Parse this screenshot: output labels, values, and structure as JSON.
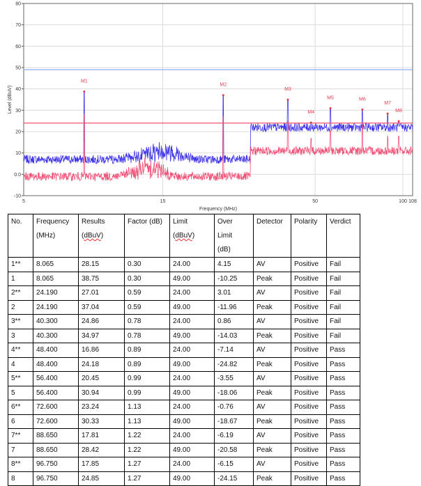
{
  "chart_data": {
    "type": "line",
    "xlabel": "Frequency (MHz)",
    "ylabel": "Level (dBuV)",
    "x_scale": "log",
    "xlim": [
      5,
      108
    ],
    "ylim": [
      -10,
      80
    ],
    "x_ticks": [
      "5",
      "15",
      "50",
      "100",
      "108"
    ],
    "x_tick_values": [
      5,
      15,
      50,
      100,
      108
    ],
    "y_ticks": [
      "80",
      "70",
      "60",
      "50",
      "40",
      "30",
      "20",
      "10",
      "0.0",
      "-10"
    ],
    "y_tick_values": [
      80,
      70,
      60,
      50,
      40,
      30,
      20,
      10,
      0,
      -10
    ],
    "grid": true,
    "limit_lines": [
      {
        "value": 49,
        "color": "#7fa3f5"
      },
      {
        "value": 24,
        "color": "#f0506e"
      }
    ],
    "traces": [
      {
        "detector": "Peak",
        "color": "#2a1ee6",
        "floor": [
          {
            "x": [
              5,
              30
            ],
            "y": 7
          },
          {
            "x": [
              30,
              108
            ],
            "y": 22
          }
        ],
        "hump": {
          "x": [
            10,
            20
          ],
          "y": 13
        }
      },
      {
        "detector": "AV",
        "color": "#f0406a",
        "floor": [
          {
            "x": [
              5,
              30
            ],
            "y": -1
          },
          {
            "x": [
              30,
              108
            ],
            "y": 11
          }
        ],
        "hump": {
          "x": [
            10,
            17
          ],
          "y": 5
        }
      }
    ],
    "markers": [
      {
        "label": "M1",
        "x": 8.065,
        "y": 38.75,
        "av": 28.15
      },
      {
        "label": "M2",
        "x": 24.19,
        "y": 37.04,
        "av": 27.01
      },
      {
        "label": "M3",
        "x": 40.3,
        "y": 34.97,
        "av": 24.86
      },
      {
        "label": "M4",
        "x": 48.4,
        "y": 24.18,
        "av": 16.86
      },
      {
        "label": "M5",
        "x": 56.4,
        "y": 30.94,
        "av": 20.45
      },
      {
        "label": "M6",
        "x": 72.6,
        "y": 30.33,
        "av": 23.24
      },
      {
        "label": "M7",
        "x": 88.65,
        "y": 28.42,
        "av": 17.81
      },
      {
        "label": "M8",
        "x": 96.75,
        "y": 24.85,
        "av": 17.85
      }
    ],
    "marker_color": "#e8384f"
  },
  "table": {
    "headers": [
      [
        "No."
      ],
      [
        "Frequency",
        "(MHz)"
      ],
      [
        "Results",
        "(dBuV)"
      ],
      [
        "Factor (dB)"
      ],
      [
        "Limit",
        "(dBuV)"
      ],
      [
        "Over",
        "Limit",
        "(dB)"
      ],
      [
        "Detector"
      ],
      [
        "Polarity"
      ],
      [
        "Verdict"
      ]
    ],
    "rows": [
      [
        "1**",
        "8.065",
        "28.15",
        "0.30",
        "24.00",
        "4.15",
        "AV",
        "Positive",
        "Fail"
      ],
      [
        "1",
        "8.065",
        "38.75",
        "0.30",
        "49.00",
        "-10.25",
        "Peak",
        "Positive",
        "Fail"
      ],
      [
        "2**",
        "24.190",
        "27.01",
        "0.59",
        "24.00",
        "3.01",
        "AV",
        "Positive",
        "Fail"
      ],
      [
        "2",
        "24.190",
        "37.04",
        "0.59",
        "49.00",
        "-11.96",
        "Peak",
        "Positive",
        "Fail"
      ],
      [
        "3**",
        "40.300",
        "24.86",
        "0.78",
        "24.00",
        "0.86",
        "AV",
        "Positive",
        "Fail"
      ],
      [
        "3",
        "40.300",
        "34.97",
        "0.78",
        "49.00",
        "-14.03",
        "Peak",
        "Positive",
        "Fail"
      ],
      [
        "4**",
        "48.400",
        "16.86",
        "0.89",
        "24.00",
        "-7.14",
        "AV",
        "Positive",
        "Pass"
      ],
      [
        "4",
        "48.400",
        "24.18",
        "0.89",
        "49.00",
        "-24.82",
        "Peak",
        "Positive",
        "Pass"
      ],
      [
        "5**",
        "56.400",
        "20.45",
        "0.99",
        "24.00",
        "-3.55",
        "AV",
        "Positive",
        "Pass"
      ],
      [
        "5",
        "56.400",
        "30.94",
        "0.99",
        "49.00",
        "-18.06",
        "Peak",
        "Positive",
        "Pass"
      ],
      [
        "6**",
        "72.600",
        "23.24",
        "1.13",
        "24.00",
        "-0.76",
        "AV",
        "Positive",
        "Pass"
      ],
      [
        "6",
        "72.600",
        "30.33",
        "1.13",
        "49.00",
        "-18.67",
        "Peak",
        "Positive",
        "Pass"
      ],
      [
        "7**",
        "88.650",
        "17.81",
        "1.22",
        "24.00",
        "-6.19",
        "AV",
        "Positive",
        "Pass"
      ],
      [
        "7",
        "88.650",
        "28.42",
        "1.22",
        "49.00",
        "-20.58",
        "Peak",
        "Positive",
        "Pass"
      ],
      [
        "8**",
        "96.750",
        "17.85",
        "1.27",
        "24.00",
        "-6.15",
        "AV",
        "Positive",
        "Pass"
      ],
      [
        "8",
        "96.750",
        "24.85",
        "1.27",
        "49.00",
        "-24.15",
        "Peak",
        "Positive",
        "Pass"
      ]
    ]
  }
}
